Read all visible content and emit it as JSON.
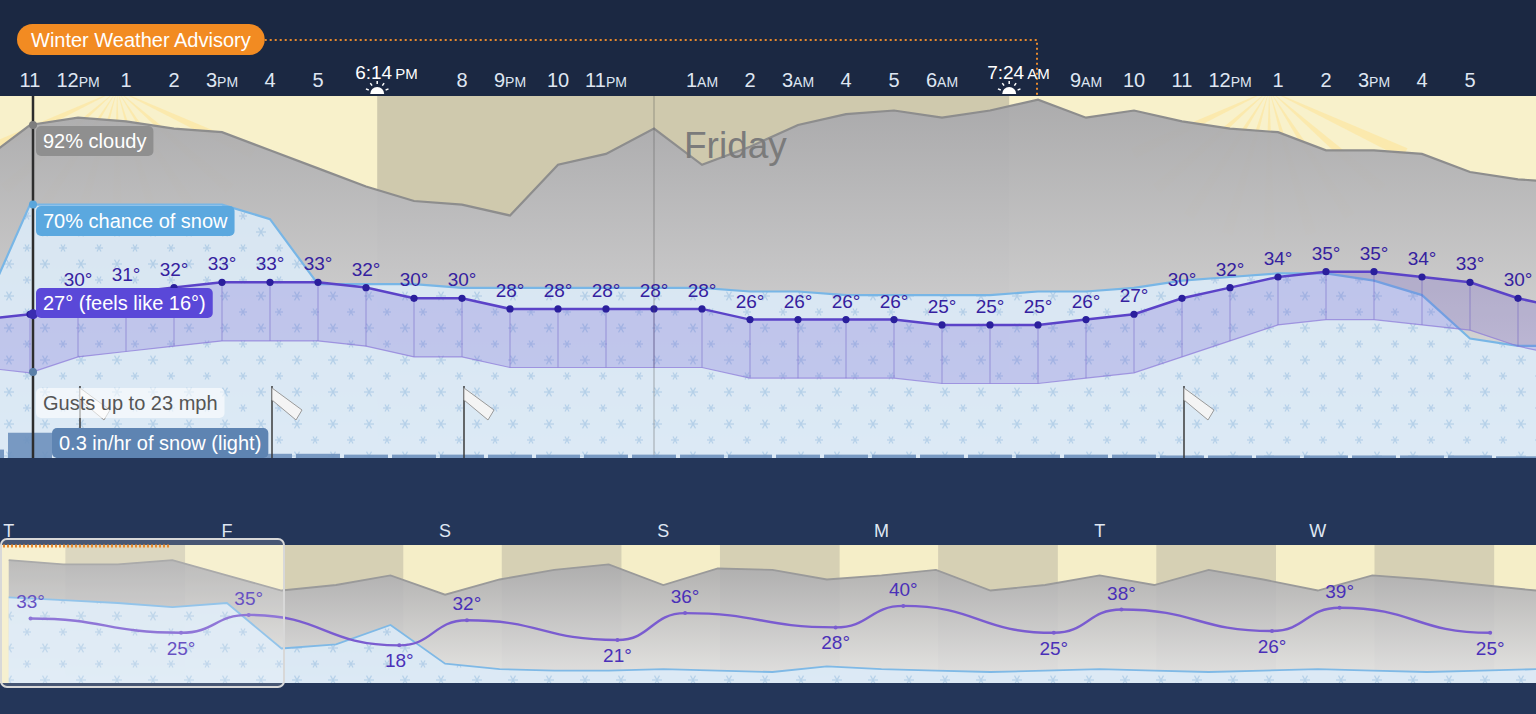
{
  "chart_data": [
    {
      "type": "line",
      "title": "Friday",
      "categories": [
        null,
        "11",
        "12PM",
        "1",
        "2",
        "3PM",
        "4",
        "5",
        "6:14 PM",
        null,
        "8",
        "9PM",
        "10",
        "11PM",
        null,
        "1AM",
        "2",
        "3AM",
        "4",
        "5",
        "6AM",
        "7:24 AM",
        null,
        "9AM",
        "10",
        "11",
        "12PM",
        "1",
        "2",
        "3PM",
        "4",
        "5",
        null,
        null
      ],
      "series": [
        {
          "type": "line",
          "color": "#5b43c8",
          "marker": "circle",
          "values": [
            26,
            27,
            30,
            31,
            32,
            33,
            33,
            33,
            32,
            30,
            30,
            28,
            28,
            28,
            28,
            28,
            26,
            26,
            26,
            26,
            25,
            25,
            25,
            26,
            27,
            30,
            32,
            34,
            35,
            35,
            34,
            33,
            30,
            28
          ],
          "value_labels": [
            null,
            null,
            "30°",
            "31°",
            "32°",
            "33°",
            "33°",
            "33°",
            "32°",
            "30°",
            "30°",
            "28°",
            "28°",
            "28°",
            "28°",
            "28°",
            "26°",
            "26°",
            "26°",
            "26°",
            "25°",
            "25°",
            "25°",
            "26°",
            "27°",
            "30°",
            "32°",
            "34°",
            "35°",
            "35°",
            "34°",
            "33°",
            "30°",
            null
          ]
        },
        {
          "type": "line",
          "color": "#8a78d8",
          "values": [
            17,
            16,
            19,
            20,
            21,
            22,
            22,
            22,
            21,
            19,
            19,
            17,
            17,
            17,
            17,
            17,
            15,
            15,
            15,
            15,
            14,
            14,
            14,
            15,
            16,
            19,
            22,
            25,
            26,
            26,
            25,
            24,
            21,
            19
          ]
        },
        {
          "type": "area",
          "axis": "y2",
          "color": "#8d8d8d",
          "values": [
            82,
            92,
            94,
            93,
            91,
            90,
            85,
            80,
            75,
            71,
            70,
            67,
            81,
            84,
            91,
            81,
            86,
            92,
            95,
            96,
            94,
            96,
            99,
            94,
            96,
            93,
            91,
            90,
            85,
            85,
            84,
            79,
            77,
            76
          ]
        },
        {
          "type": "area",
          "axis": "y2",
          "color": "#78b6e6",
          "values": [
            40,
            70,
            70,
            70,
            70,
            70,
            66,
            48,
            48,
            48,
            47,
            47,
            47,
            47,
            47,
            47,
            46,
            46,
            45,
            45,
            45,
            45,
            46,
            46,
            47,
            49,
            50,
            51,
            51,
            49,
            45,
            33,
            31,
            31
          ]
        }
      ],
      "ylim": [
        0,
        68
      ],
      "y2lim": [
        0,
        100
      ],
      "tick_labels": "x",
      "data_labels": true,
      "annotations": {
        "advisory": "Winter Weather Advisory",
        "cloud": "92% cloudy",
        "chance": "70% chance of snow",
        "temperature": "27° (feels like 16°)",
        "gusts": "Gusts up to 23 mph",
        "snow": "0.3 in/hr of snow (light)"
      }
    },
    {
      "type": "bar",
      "categories": [
        null,
        "11",
        "12PM",
        "1",
        "2",
        "3PM",
        "4",
        "5",
        "6:14 PM",
        null,
        "8",
        "9PM",
        "10",
        "11PM",
        null,
        "1AM",
        "2",
        "3AM",
        "4",
        "5",
        "6AM",
        "7:24 AM",
        null,
        "9AM",
        "10",
        "11",
        "12PM",
        "1",
        "2",
        "3PM",
        "4",
        "5",
        null,
        null
      ],
      "series": [
        {
          "color": "#6d90bc",
          "values": [
            0.1,
            0.3,
            0.05,
            0.05,
            0.05,
            0.05,
            0.05,
            0.05,
            0.04,
            0.04,
            0.04,
            0.04,
            0.04,
            0.04,
            0.04,
            0.04,
            0.04,
            0.04,
            0.04,
            0.04,
            0.04,
            0.04,
            0.04,
            0.04,
            0.04,
            0.03,
            0.03,
            0.03,
            0.03,
            0.03,
            0.03,
            0.03,
            0.02,
            0.02
          ]
        }
      ],
      "ylim": [
        0,
        4.3
      ],
      "tick_labels": false
    },
    {
      "type": "line",
      "categories": [
        "T",
        "F",
        "S",
        "S",
        "M",
        "T",
        "W",
        null
      ],
      "series": [
        {
          "color": "#7a5cd0",
          "values": [
            33,
            35,
            32,
            36,
            40,
            38,
            39,
            null
          ],
          "value_labels": [
            "33°",
            "35°",
            "32°",
            "36°",
            "40°",
            "38°",
            "39°",
            null
          ]
        },
        {
          "color": "#7a5cd0",
          "values": [
            null,
            25,
            18,
            21,
            28,
            25,
            26,
            25
          ],
          "value_labels": [
            null,
            "25°",
            "18°",
            "21°",
            "28°",
            "25°",
            "26°",
            "25°"
          ]
        }
      ],
      "ylim": [
        -3,
        74
      ],
      "tick_labels": "x",
      "data_labels": true
    },
    {
      "type": "area",
      "x": [
        0.5,
        0.75,
        1,
        1.25,
        1.5,
        1.75,
        2,
        2.25,
        2.5,
        2.75,
        3,
        3.25,
        3.5,
        3.75,
        4,
        4.25,
        4.5,
        4.75,
        5,
        5.25,
        5.5,
        5.75,
        6,
        6.25,
        6.5,
        6.75,
        7,
        7.25,
        7.5
      ],
      "series": [
        {
          "color": "#9a9a9a",
          "values": [
            89,
            86,
            86,
            89,
            78,
            67,
            71,
            78,
            64,
            75,
            82,
            86,
            71,
            83,
            82,
            75,
            78,
            82,
            67,
            71,
            78,
            71,
            82,
            75,
            67,
            78,
            75,
            71,
            67
          ]
        },
        {
          "color": "#7fb9e6",
          "values": [
            62,
            60,
            58,
            55,
            58,
            25,
            28,
            42,
            14,
            10,
            9,
            9,
            10,
            9,
            8,
            12,
            10,
            9,
            8,
            9,
            10,
            9,
            8,
            9,
            10,
            9,
            8,
            9,
            10
          ]
        }
      ],
      "xlim": [
        0.46,
        7.5
      ],
      "ylim": [
        0,
        100
      ],
      "tick_labels": false
    }
  ]
}
